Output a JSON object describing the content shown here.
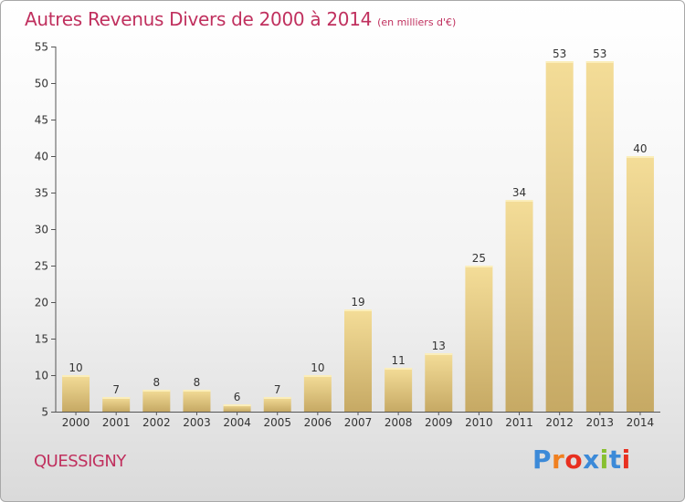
{
  "title": {
    "main": "Autres Revenus Divers de 2000 à 2014",
    "unit": "(en milliers d'€)"
  },
  "commune": "QUESSIGNY",
  "logo": {
    "text": "Proxiti",
    "colors": [
      "#3c8ad8",
      "#f08020",
      "#e83020",
      "#3c8ad8",
      "#88c030",
      "#3c8ad8",
      "#e83020"
    ]
  },
  "colors": {
    "title": "#c0305e",
    "bar_light": "#f2dc96",
    "bar_dark": "#c8ad68",
    "axis": "#555555",
    "grid": "#dddddd",
    "text": "#333333"
  },
  "chart_data": {
    "type": "bar",
    "title": "Autres Revenus Divers de 2000 à 2014",
    "subtitle": "(en milliers d'€)",
    "xlabel": "",
    "ylabel": "",
    "categories": [
      "2000",
      "2001",
      "2002",
      "2003",
      "2004",
      "2005",
      "2006",
      "2007",
      "2008",
      "2009",
      "2010",
      "2011",
      "2012",
      "2013",
      "2014"
    ],
    "values": [
      10,
      7,
      8,
      8,
      6,
      7,
      10,
      19,
      11,
      13,
      25,
      34,
      53,
      53,
      40
    ],
    "value_labels": [
      "10",
      "7",
      "8",
      "8",
      "6",
      "7",
      "10",
      "19",
      "11",
      "13",
      "25",
      "34",
      "53",
      "53",
      "40"
    ],
    "ylim": [
      5,
      55
    ],
    "yticks": [
      5,
      10,
      15,
      20,
      25,
      30,
      35,
      40,
      45,
      50,
      55
    ],
    "grid": false,
    "legend": "none"
  }
}
